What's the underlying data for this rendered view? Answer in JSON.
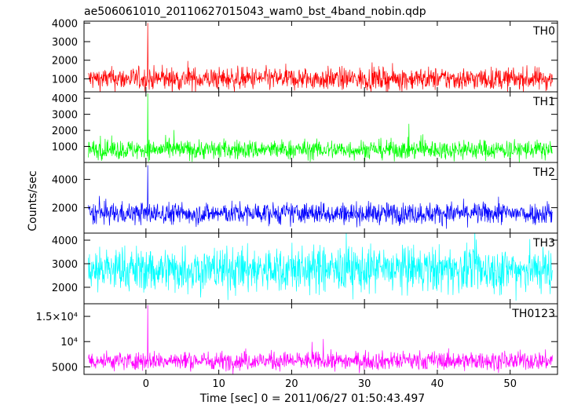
{
  "chart_data": {
    "type": "line",
    "title": "ae506061010_20110627015043_wam0_bst_4band_nobin.qdp",
    "xlabel": "Time [sec] 0 = 2011/06/27 01:50:43.497",
    "ylabel": "Counts/sec",
    "xlim": [
      -8.5,
      56.5
    ],
    "x_ticks": [
      0,
      10,
      20,
      30,
      40,
      50
    ],
    "x_tick_labels": [
      "0",
      "10",
      "20",
      "30",
      "40",
      "50"
    ],
    "grid": false,
    "data_start": -7.9,
    "data_end": 55.8,
    "step": 0.05,
    "series": [
      {
        "name": "TH0",
        "color": "#ff0000",
        "ylim": [
          300,
          4100
        ],
        "y_ticks": [
          1000,
          2000,
          3000,
          4000
        ],
        "y_tick_labels": [
          "1000",
          "2000",
          "3000",
          "4000"
        ],
        "mean": 1000,
        "sigma": 300,
        "spike": {
          "x": 0.25,
          "value": 4000
        }
      },
      {
        "name": "TH1",
        "color": "#00ff00",
        "ylim": [
          0,
          4400
        ],
        "y_ticks": [
          1000,
          2000,
          3000,
          4000
        ],
        "y_tick_labels": [
          "1000",
          "2000",
          "3000",
          "4000"
        ],
        "mean": 800,
        "sigma": 300,
        "spike": {
          "x": 0.25,
          "value": 4300
        }
      },
      {
        "name": "TH2",
        "color": "#0000ff",
        "ylim": [
          200,
          5200
        ],
        "y_ticks": [
          2000,
          4000
        ],
        "y_tick_labels": [
          "2000",
          "4000"
        ],
        "mean": 1600,
        "sigma": 380,
        "spike": {
          "x": 0.25,
          "value": 5000
        }
      },
      {
        "name": "TH3",
        "color": "#00ffff",
        "ylim": [
          1300,
          4300
        ],
        "y_ticks": [
          2000,
          3000,
          4000
        ],
        "y_tick_labels": [
          "2000",
          "3000",
          "4000"
        ],
        "mean": 2750,
        "sigma": 480,
        "spike": null
      },
      {
        "name": "TH0123",
        "color": "#ff00ff",
        "ylim": [
          3500,
          17500
        ],
        "y_ticks": [
          5000,
          10000,
          15000
        ],
        "y_tick_labels": [
          "5000",
          "10⁴",
          "1.5×10⁴"
        ],
        "mean": 6200,
        "sigma": 900,
        "spike": {
          "x": 0.25,
          "value": 17200
        }
      }
    ]
  }
}
